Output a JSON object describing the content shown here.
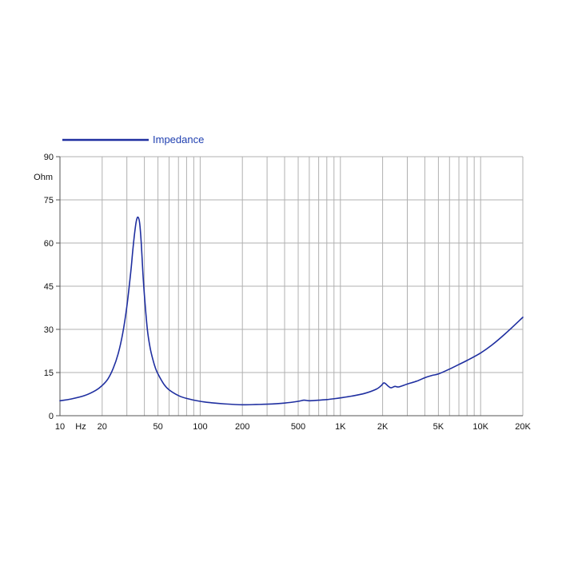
{
  "chart_data": {
    "type": "line",
    "title": "",
    "xlabel": "Hz",
    "ylabel": "Ohm",
    "x_scale": "log",
    "xlim": [
      10,
      20000
    ],
    "ylim": [
      0,
      90
    ],
    "grid": true,
    "legend_position": "top-left",
    "colors": {
      "series": "#1f2fa0",
      "legend_text": "#1f3fb0",
      "grid": "#b0b0b0",
      "axis": "#555555"
    },
    "y_ticks": [
      {
        "value": 0,
        "label": "0"
      },
      {
        "value": 15,
        "label": "15"
      },
      {
        "value": 30,
        "label": "30"
      },
      {
        "value": 45,
        "label": "45"
      },
      {
        "value": 60,
        "label": "60"
      },
      {
        "value": 75,
        "label": "75"
      },
      {
        "value": 90,
        "label": "90"
      }
    ],
    "x_ticks": [
      {
        "value": 10,
        "label": "10"
      },
      {
        "value": 20,
        "label": "20"
      },
      {
        "value": 50,
        "label": "50"
      },
      {
        "value": 100,
        "label": "100"
      },
      {
        "value": 200,
        "label": "200"
      },
      {
        "value": 500,
        "label": "500"
      },
      {
        "value": 1000,
        "label": "1K"
      },
      {
        "value": 2000,
        "label": "2K"
      },
      {
        "value": 5000,
        "label": "5K"
      },
      {
        "value": 10000,
        "label": "10K"
      },
      {
        "value": 20000,
        "label": "20K"
      }
    ],
    "x_gridlines": [
      10,
      20,
      30,
      40,
      50,
      60,
      70,
      80,
      90,
      100,
      200,
      300,
      400,
      500,
      600,
      700,
      800,
      900,
      1000,
      2000,
      3000,
      4000,
      5000,
      6000,
      7000,
      8000,
      9000,
      10000,
      20000
    ],
    "series": [
      {
        "name": "Impedance",
        "x": [
          10,
          12,
          15,
          18,
          20,
          22,
          24,
          26,
          28,
          30,
          32,
          33,
          34,
          35,
          36,
          37,
          38,
          39,
          40,
          42,
          44,
          46,
          48,
          50,
          55,
          60,
          70,
          80,
          100,
          120,
          150,
          200,
          250,
          300,
          400,
          500,
          550,
          600,
          700,
          800,
          900,
          1000,
          1200,
          1500,
          1800,
          1950,
          2050,
          2200,
          2300,
          2450,
          2600,
          3000,
          3500,
          4000,
          4500,
          5000,
          6000,
          7000,
          8000,
          10000,
          12000,
          15000,
          20000
        ],
        "values": [
          5.2,
          5.8,
          7.0,
          8.8,
          10.5,
          12.8,
          16.5,
          21.5,
          28.5,
          38.0,
          50.0,
          57.0,
          63.0,
          67.5,
          69.0,
          67.0,
          60.0,
          50.0,
          42.0,
          30.0,
          23.5,
          19.5,
          16.5,
          14.5,
          11.0,
          9.0,
          7.0,
          6.0,
          5.0,
          4.5,
          4.1,
          3.8,
          3.9,
          4.0,
          4.4,
          5.0,
          5.4,
          5.2,
          5.4,
          5.6,
          5.9,
          6.2,
          6.8,
          7.8,
          9.2,
          10.4,
          11.4,
          10.2,
          9.7,
          10.2,
          10.0,
          11.0,
          12.0,
          13.2,
          14.0,
          14.5,
          16.2,
          17.8,
          19.2,
          21.8,
          24.5,
          28.5,
          34.2
        ]
      }
    ]
  }
}
